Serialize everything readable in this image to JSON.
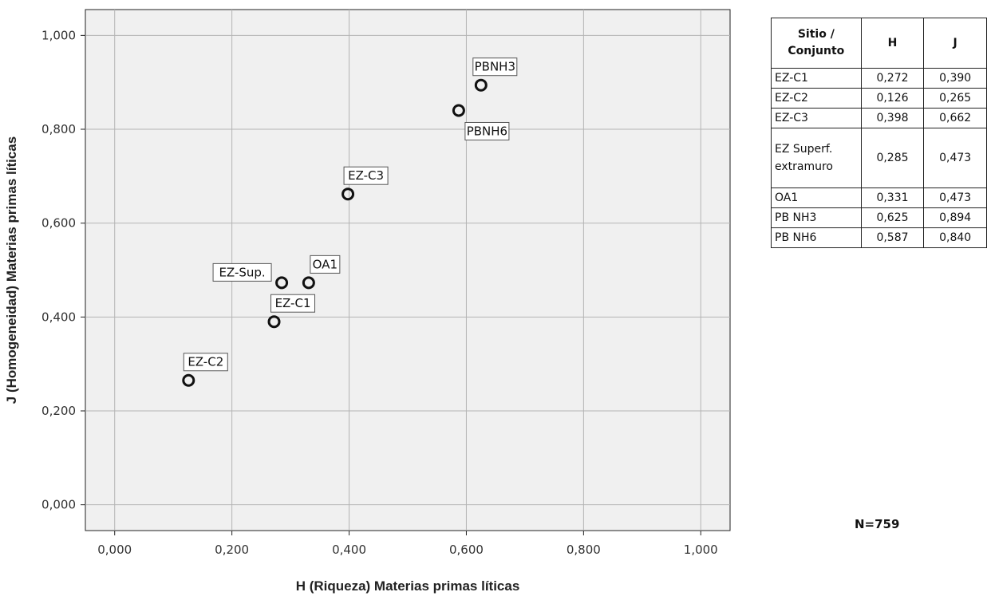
{
  "chart_data": {
    "type": "scatter",
    "xlabel": "H (Riqueza) Materias primas líticas",
    "ylabel": "J (Homogeneidad) Materias primas líticas",
    "xlim": [
      -0.05,
      1.05
    ],
    "ylim": [
      -0.055,
      1.055
    ],
    "x_ticks": [
      "0,000",
      "0,200",
      "0,400",
      "0,600",
      "0,800",
      "1,000"
    ],
    "y_ticks": [
      "0,000",
      "0,200",
      "0,400",
      "0,600",
      "0,800",
      "1,000"
    ],
    "grid": true,
    "points": [
      {
        "label": "EZ-C1",
        "x": 0.272,
        "y": 0.39
      },
      {
        "label": "EZ-C2",
        "x": 0.126,
        "y": 0.265
      },
      {
        "label": "EZ-C3",
        "x": 0.398,
        "y": 0.662
      },
      {
        "label": "EZ-Sup.",
        "x": 0.285,
        "y": 0.473
      },
      {
        "label": "OA1",
        "x": 0.331,
        "y": 0.473
      },
      {
        "label": "PBNH3",
        "x": 0.625,
        "y": 0.894
      },
      {
        "label": "PBNH6",
        "x": 0.587,
        "y": 0.84
      }
    ]
  },
  "table": {
    "header_sitio": "Sitio /",
    "header_conjunto": "Conjunto",
    "header_h": "H",
    "header_j": "J",
    "rows": [
      {
        "sitio": "EZ-C1",
        "h": "0,272",
        "j": "0,390"
      },
      {
        "sitio": "EZ-C2",
        "h": "0,126",
        "j": "0,265"
      },
      {
        "sitio": "EZ-C3",
        "h": "0,398",
        "j": "0,662"
      },
      {
        "sitio_line1": "EZ Superf.",
        "sitio_line2": "extramuro",
        "h": "0,285",
        "j": "0,473"
      },
      {
        "sitio": "OA1",
        "h": "0,331",
        "j": "0,473"
      },
      {
        "sitio": "PB NH3",
        "h": "0,625",
        "j": "0,894"
      },
      {
        "sitio": "PB NH6",
        "h": "0,587",
        "j": "0,840"
      }
    ]
  },
  "note": "N=759"
}
